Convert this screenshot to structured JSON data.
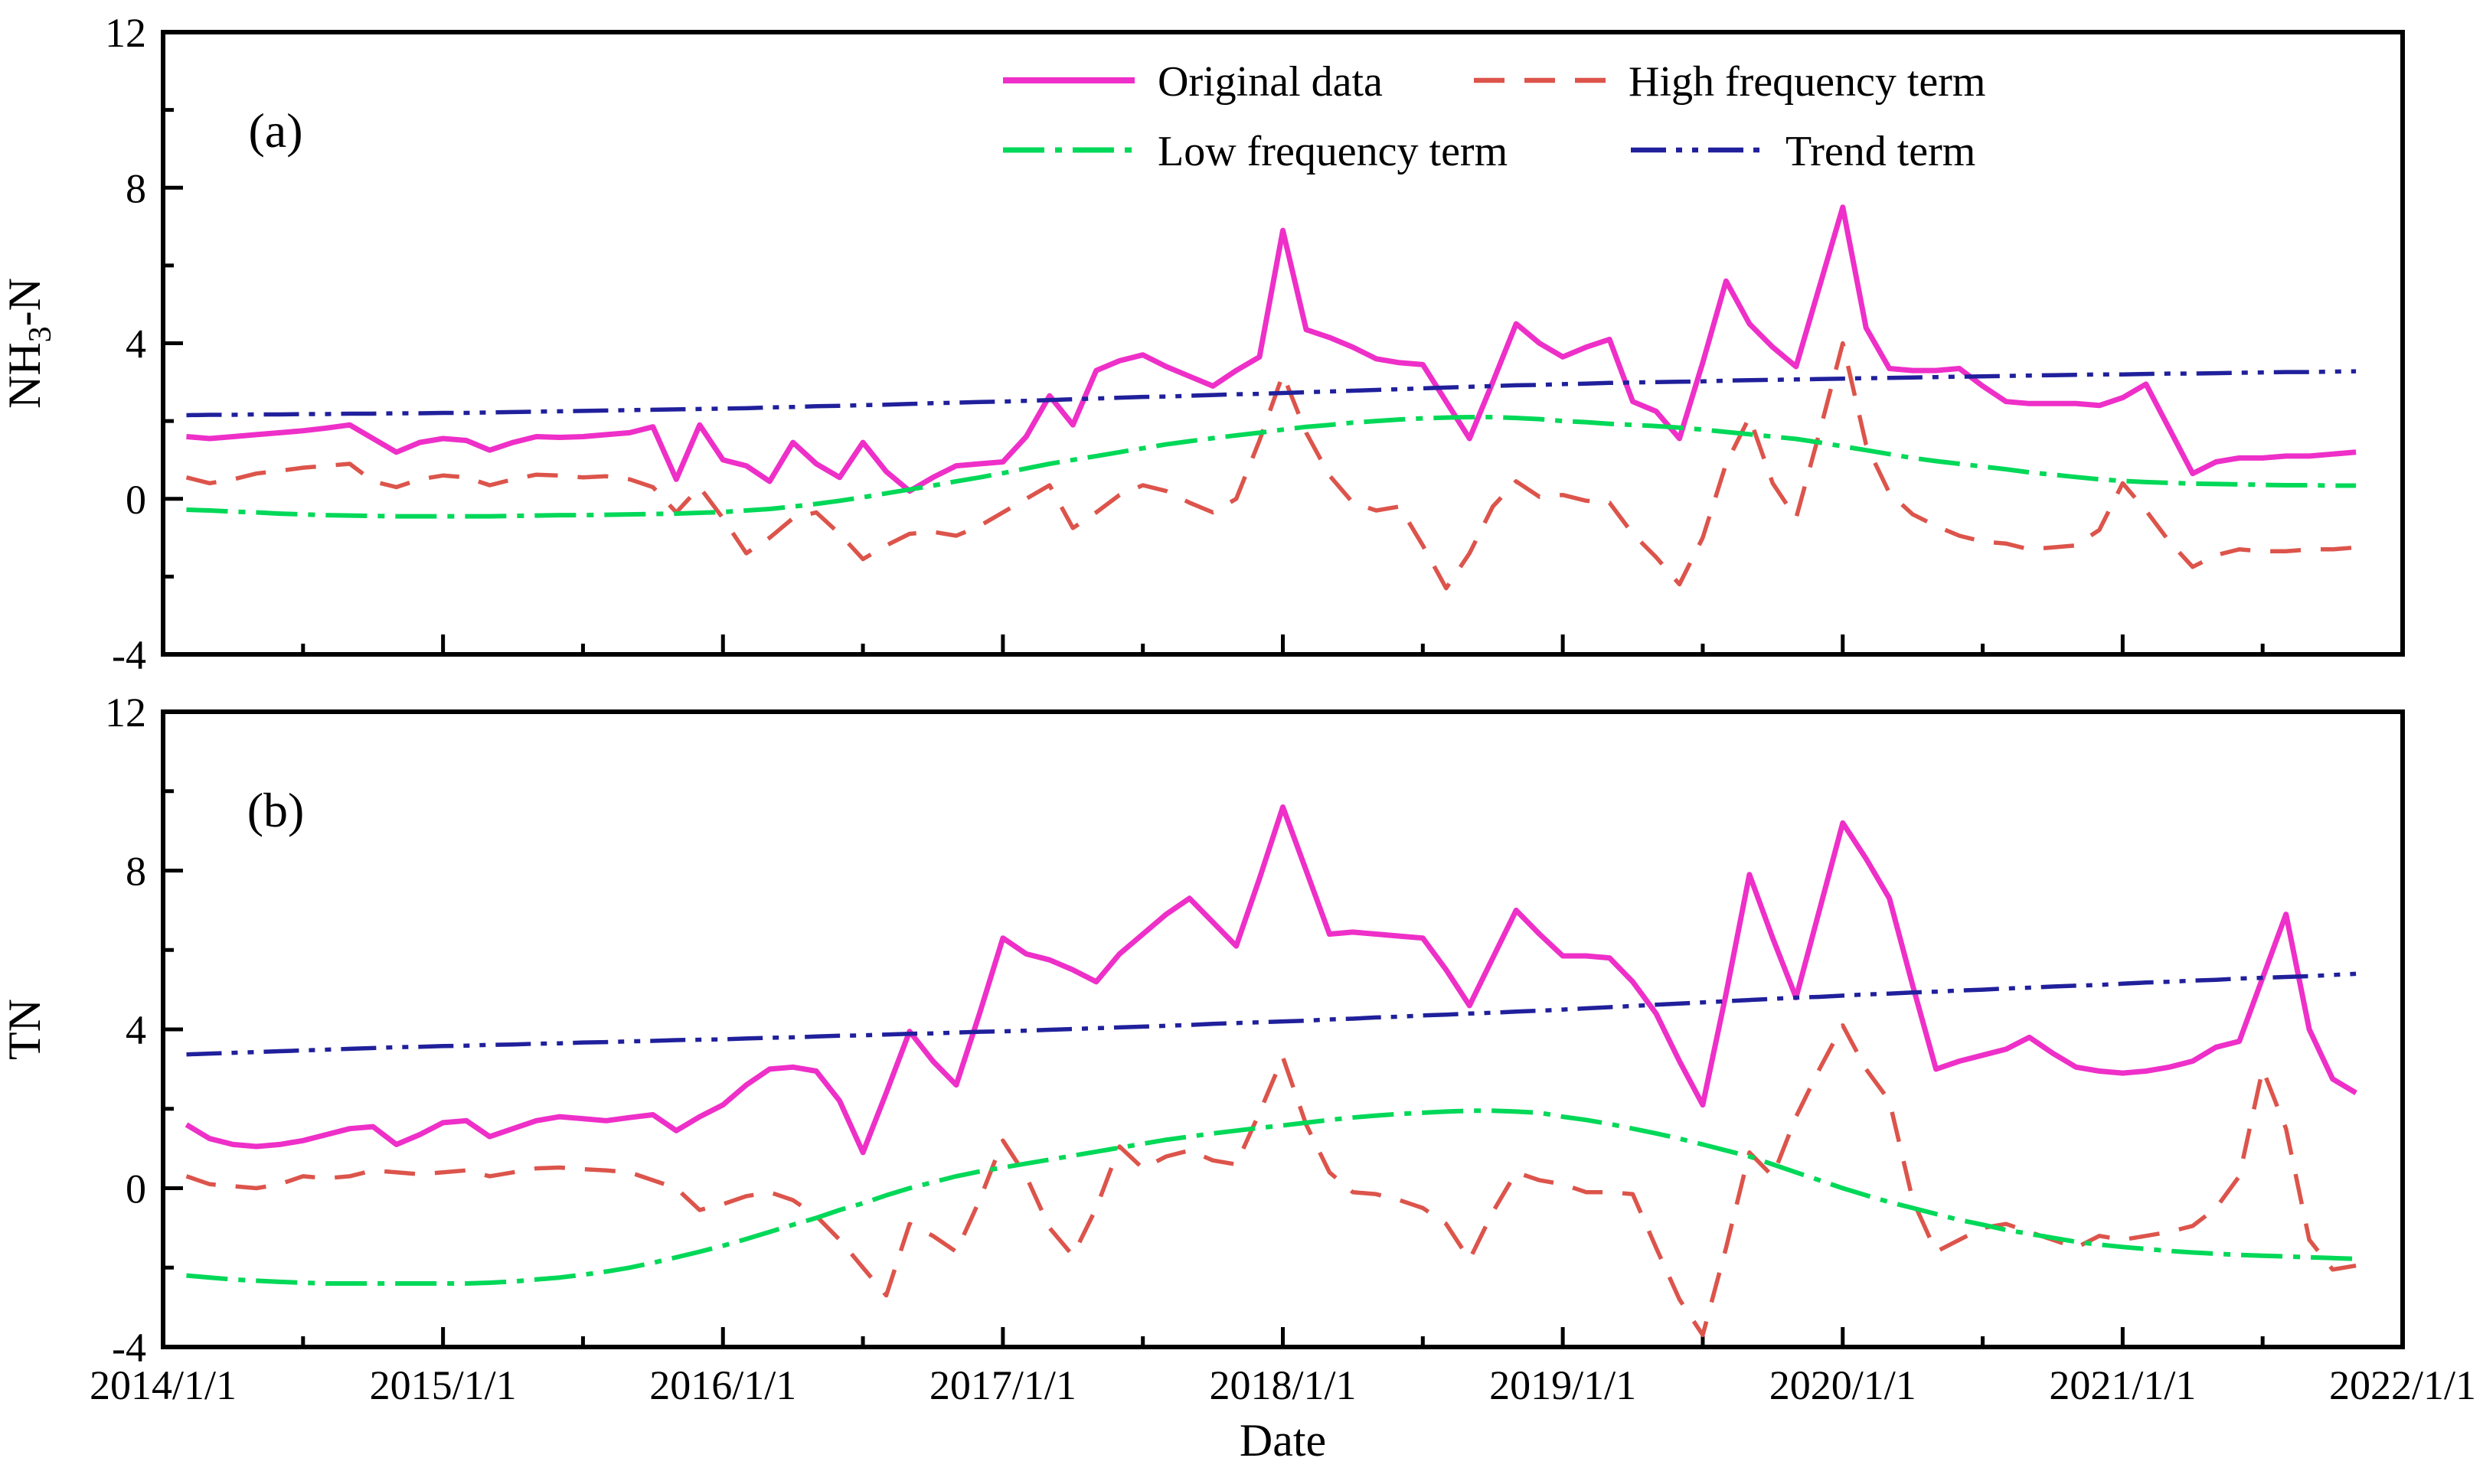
{
  "figure": {
    "xlabel": "Date",
    "x_tick_labels": [
      "2014/1/1",
      "2015/1/1",
      "2016/1/1",
      "2017/1/1",
      "2018/1/1",
      "2019/1/1",
      "2020/1/1",
      "2021/1/1",
      "2022/1/1"
    ],
    "legend": [
      {
        "key": "original",
        "label": "Original data"
      },
      {
        "key": "high",
        "label": "High frequency term"
      },
      {
        "key": "low",
        "label": "Low frequency term"
      },
      {
        "key": "trend",
        "label": "Trend term"
      }
    ],
    "colors": {
      "original": "#EE2FC8",
      "high": "#DC544B",
      "low": "#00D858",
      "trend": "#20209C",
      "axis": "#000000",
      "background": "#FFFFFF"
    }
  },
  "chart_data": [
    {
      "type": "line",
      "panel_label": "(a)",
      "ylabel": {
        "pre": "NH",
        "sub": "3",
        "post": "-N"
      },
      "ylim": [
        -4,
        12
      ],
      "yticks_major": [
        12,
        8,
        4,
        0,
        -4
      ],
      "yticks_minor": [
        10,
        6,
        2,
        -2
      ],
      "x_start": "2014/2",
      "x_end": "2021/11",
      "x_interval": "monthly",
      "series": [
        {
          "key": "original",
          "name": "Original data",
          "values": [
            1.6,
            1.55,
            1.6,
            1.65,
            1.7,
            1.75,
            1.82,
            1.9,
            1.55,
            1.2,
            1.45,
            1.55,
            1.5,
            1.25,
            1.45,
            1.6,
            1.58,
            1.6,
            1.65,
            1.7,
            1.85,
            0.5,
            1.9,
            1.0,
            0.85,
            0.45,
            1.45,
            0.9,
            0.55,
            1.45,
            0.7,
            0.2,
            0.55,
            0.85,
            0.9,
            0.95,
            1.6,
            2.65,
            1.9,
            3.3,
            3.55,
            3.7,
            3.4,
            3.15,
            2.9,
            3.3,
            3.65,
            6.9,
            4.35,
            4.15,
            3.9,
            3.6,
            3.5,
            3.45,
            2.5,
            1.55,
            3.0,
            4.5,
            4.0,
            3.65,
            3.9,
            4.1,
            2.5,
            2.25,
            1.55,
            3.5,
            5.6,
            4.5,
            3.9,
            3.4,
            5.45,
            7.5,
            4.4,
            3.35,
            3.3,
            3.3,
            3.35,
            2.9,
            2.5,
            2.45,
            2.45,
            2.45,
            2.4,
            2.6,
            2.95,
            1.8,
            0.65,
            0.95,
            1.05,
            1.05,
            1.1,
            1.1,
            1.15,
            1.2
          ]
        },
        {
          "key": "high",
          "name": "High frequency term",
          "values": [
            0.55,
            0.4,
            0.5,
            0.65,
            0.72,
            0.8,
            0.85,
            0.9,
            0.45,
            0.3,
            0.5,
            0.6,
            0.55,
            0.35,
            0.5,
            0.62,
            0.6,
            0.55,
            0.58,
            0.5,
            0.3,
            -0.35,
            0.3,
            -0.5,
            -1.4,
            -1.0,
            -0.5,
            -0.35,
            -0.9,
            -1.55,
            -1.2,
            -0.9,
            -0.85,
            -0.95,
            -0.7,
            -0.35,
            0.0,
            0.35,
            -0.75,
            -0.35,
            0.1,
            0.35,
            0.2,
            -0.1,
            -0.35,
            0.0,
            1.5,
            3.2,
            1.7,
            0.6,
            -0.1,
            -0.3,
            -0.2,
            -1.2,
            -2.3,
            -1.4,
            -0.2,
            0.45,
            0.05,
            0.1,
            -0.05,
            -0.1,
            -0.9,
            -1.5,
            -2.2,
            -1.0,
            0.9,
            2.1,
            0.4,
            -0.5,
            1.7,
            4.0,
            1.4,
            0.15,
            -0.4,
            -0.7,
            -0.95,
            -1.1,
            -1.15,
            -1.3,
            -1.25,
            -1.2,
            -0.8,
            0.4,
            -0.3,
            -1.1,
            -1.75,
            -1.45,
            -1.3,
            -1.35,
            -1.35,
            -1.3,
            -1.3,
            -1.25
          ]
        },
        {
          "key": "low",
          "name": "Low frequency term",
          "values": [
            -0.28,
            -0.3,
            -0.33,
            -0.35,
            -0.38,
            -0.4,
            -0.42,
            -0.43,
            -0.44,
            -0.45,
            -0.45,
            -0.45,
            -0.45,
            -0.45,
            -0.44,
            -0.43,
            -0.42,
            -0.42,
            -0.41,
            -0.4,
            -0.39,
            -0.38,
            -0.36,
            -0.34,
            -0.3,
            -0.26,
            -0.2,
            -0.13,
            -0.05,
            0.04,
            0.14,
            0.24,
            0.34,
            0.45,
            0.55,
            0.66,
            0.78,
            0.9,
            1.0,
            1.1,
            1.2,
            1.3,
            1.4,
            1.48,
            1.56,
            1.63,
            1.7,
            1.78,
            1.85,
            1.9,
            1.96,
            2.0,
            2.04,
            2.07,
            2.09,
            2.1,
            2.1,
            2.08,
            2.05,
            2.0,
            1.97,
            1.93,
            1.9,
            1.87,
            1.83,
            1.78,
            1.72,
            1.66,
            1.6,
            1.54,
            1.45,
            1.35,
            1.25,
            1.15,
            1.05,
            0.97,
            0.9,
            0.83,
            0.76,
            0.68,
            0.62,
            0.56,
            0.5,
            0.46,
            0.43,
            0.41,
            0.39,
            0.38,
            0.37,
            0.36,
            0.35,
            0.35,
            0.34,
            0.34
          ]
        },
        {
          "key": "trend",
          "name": "Trend term",
          "values": [
            2.15,
            2.16,
            2.16,
            2.17,
            2.17,
            2.18,
            2.18,
            2.19,
            2.19,
            2.2,
            2.2,
            2.21,
            2.21,
            2.22,
            2.23,
            2.24,
            2.25,
            2.26,
            2.27,
            2.28,
            2.29,
            2.3,
            2.31,
            2.32,
            2.33,
            2.35,
            2.36,
            2.38,
            2.39,
            2.41,
            2.42,
            2.44,
            2.46,
            2.47,
            2.49,
            2.5,
            2.52,
            2.54,
            2.56,
            2.58,
            2.6,
            2.62,
            2.63,
            2.65,
            2.67,
            2.69,
            2.7,
            2.72,
            2.74,
            2.76,
            2.78,
            2.8,
            2.82,
            2.84,
            2.86,
            2.88,
            2.9,
            2.92,
            2.93,
            2.95,
            2.96,
            2.98,
            2.99,
            3.0,
            3.01,
            3.02,
            3.04,
            3.05,
            3.06,
            3.07,
            3.08,
            3.09,
            3.1,
            3.11,
            3.12,
            3.13,
            3.14,
            3.15,
            3.16,
            3.17,
            3.18,
            3.19,
            3.2,
            3.2,
            3.21,
            3.22,
            3.22,
            3.23,
            3.24,
            3.25,
            3.26,
            3.26,
            3.27,
            3.28
          ]
        }
      ]
    },
    {
      "type": "line",
      "panel_label": "(b)",
      "ylabel": {
        "pre": "TN",
        "sub": "",
        "post": ""
      },
      "ylim": [
        -4,
        12
      ],
      "yticks_major": [
        12,
        8,
        4,
        0,
        -4
      ],
      "yticks_minor": [
        10,
        6,
        2,
        -2
      ],
      "x_start": "2014/2",
      "x_end": "2021/11",
      "x_interval": "monthly",
      "series": [
        {
          "key": "original",
          "name": "Original data",
          "values": [
            1.6,
            1.25,
            1.1,
            1.05,
            1.1,
            1.2,
            1.35,
            1.5,
            1.55,
            1.1,
            1.35,
            1.65,
            1.7,
            1.3,
            1.5,
            1.7,
            1.8,
            1.75,
            1.7,
            1.78,
            1.85,
            1.45,
            1.8,
            2.1,
            2.6,
            3.0,
            3.05,
            2.95,
            2.2,
            0.9,
            2.4,
            3.95,
            3.2,
            2.6,
            4.4,
            6.3,
            5.9,
            5.75,
            5.5,
            5.2,
            5.9,
            6.4,
            6.9,
            7.3,
            6.7,
            6.1,
            7.8,
            9.6,
            8.0,
            6.4,
            6.45,
            6.4,
            6.35,
            6.3,
            5.5,
            4.6,
            5.8,
            7.0,
            6.4,
            5.85,
            5.85,
            5.8,
            5.2,
            4.4,
            3.2,
            2.1,
            4.9,
            7.9,
            6.3,
            4.8,
            7.0,
            9.2,
            8.3,
            7.3,
            5.1,
            3.0,
            3.2,
            3.35,
            3.5,
            3.8,
            3.4,
            3.05,
            2.95,
            2.9,
            2.95,
            3.05,
            3.2,
            3.55,
            3.7,
            5.3,
            6.9,
            4.0,
            2.75,
            2.4
          ]
        },
        {
          "key": "high",
          "name": "High frequency term",
          "values": [
            0.3,
            0.1,
            0.05,
            0.0,
            0.1,
            0.3,
            0.25,
            0.3,
            0.45,
            0.4,
            0.35,
            0.4,
            0.45,
            0.3,
            0.4,
            0.5,
            0.52,
            0.48,
            0.45,
            0.4,
            0.2,
            0.0,
            -0.55,
            -0.4,
            -0.2,
            -0.1,
            -0.3,
            -0.7,
            -1.3,
            -2.0,
            -2.7,
            -0.9,
            -1.2,
            -1.6,
            -0.3,
            1.2,
            0.3,
            -1.0,
            -1.7,
            -0.5,
            1.05,
            0.5,
            0.8,
            0.95,
            0.7,
            0.6,
            1.9,
            3.3,
            1.6,
            0.4,
            -0.1,
            -0.15,
            -0.3,
            -0.5,
            -0.9,
            -1.8,
            -0.6,
            0.4,
            0.2,
            0.1,
            -0.1,
            -0.1,
            -0.15,
            -1.5,
            -2.8,
            -3.7,
            -1.5,
            0.9,
            0.3,
            1.8,
            3.0,
            4.1,
            3.0,
            2.2,
            -0.3,
            -1.6,
            -1.3,
            -1.0,
            -0.9,
            -1.1,
            -1.3,
            -1.5,
            -1.2,
            -1.3,
            -1.2,
            -1.1,
            -0.95,
            -0.5,
            0.3,
            3.0,
            1.5,
            -1.3,
            -2.05,
            -1.95
          ]
        },
        {
          "key": "low",
          "name": "Low frequency term",
          "values": [
            -2.2,
            -2.25,
            -2.3,
            -2.33,
            -2.36,
            -2.38,
            -2.4,
            -2.4,
            -2.4,
            -2.4,
            -2.4,
            -2.4,
            -2.4,
            -2.38,
            -2.35,
            -2.3,
            -2.25,
            -2.18,
            -2.1,
            -2.0,
            -1.88,
            -1.74,
            -1.6,
            -1.45,
            -1.28,
            -1.1,
            -0.92,
            -0.75,
            -0.55,
            -0.38,
            -0.18,
            0.0,
            0.15,
            0.3,
            0.42,
            0.52,
            0.62,
            0.72,
            0.82,
            0.92,
            1.02,
            1.12,
            1.22,
            1.3,
            1.38,
            1.45,
            1.52,
            1.58,
            1.65,
            1.72,
            1.78,
            1.83,
            1.87,
            1.9,
            1.93,
            1.95,
            1.95,
            1.93,
            1.9,
            1.8,
            1.72,
            1.62,
            1.5,
            1.38,
            1.25,
            1.1,
            0.95,
            0.8,
            0.6,
            0.4,
            0.2,
            0.0,
            -0.18,
            -0.35,
            -0.5,
            -0.65,
            -0.8,
            -0.92,
            -1.05,
            -1.15,
            -1.25,
            -1.35,
            -1.42,
            -1.48,
            -1.53,
            -1.58,
            -1.62,
            -1.65,
            -1.68,
            -1.7,
            -1.72,
            -1.74,
            -1.76,
            -1.78
          ]
        },
        {
          "key": "trend",
          "name": "Trend term",
          "values": [
            3.37,
            3.39,
            3.41,
            3.43,
            3.45,
            3.47,
            3.49,
            3.51,
            3.53,
            3.55,
            3.56,
            3.58,
            3.59,
            3.61,
            3.62,
            3.64,
            3.65,
            3.67,
            3.68,
            3.7,
            3.71,
            3.73,
            3.74,
            3.75,
            3.77,
            3.79,
            3.8,
            3.82,
            3.84,
            3.85,
            3.87,
            3.89,
            3.9,
            3.92,
            3.94,
            3.95,
            3.97,
            3.99,
            4.01,
            4.03,
            4.05,
            4.07,
            4.09,
            4.11,
            4.14,
            4.16,
            4.18,
            4.2,
            4.22,
            4.25,
            4.27,
            4.3,
            4.32,
            4.35,
            4.37,
            4.4,
            4.42,
            4.45,
            4.47,
            4.5,
            4.53,
            4.56,
            4.59,
            4.62,
            4.65,
            4.68,
            4.71,
            4.74,
            4.77,
            4.8,
            4.82,
            4.85,
            4.88,
            4.9,
            4.93,
            4.95,
            4.98,
            5.0,
            5.03,
            5.05,
            5.08,
            5.1,
            5.12,
            5.15,
            5.18,
            5.2,
            5.23,
            5.25,
            5.28,
            5.3,
            5.32,
            5.34,
            5.37,
            5.4
          ]
        }
      ]
    }
  ]
}
